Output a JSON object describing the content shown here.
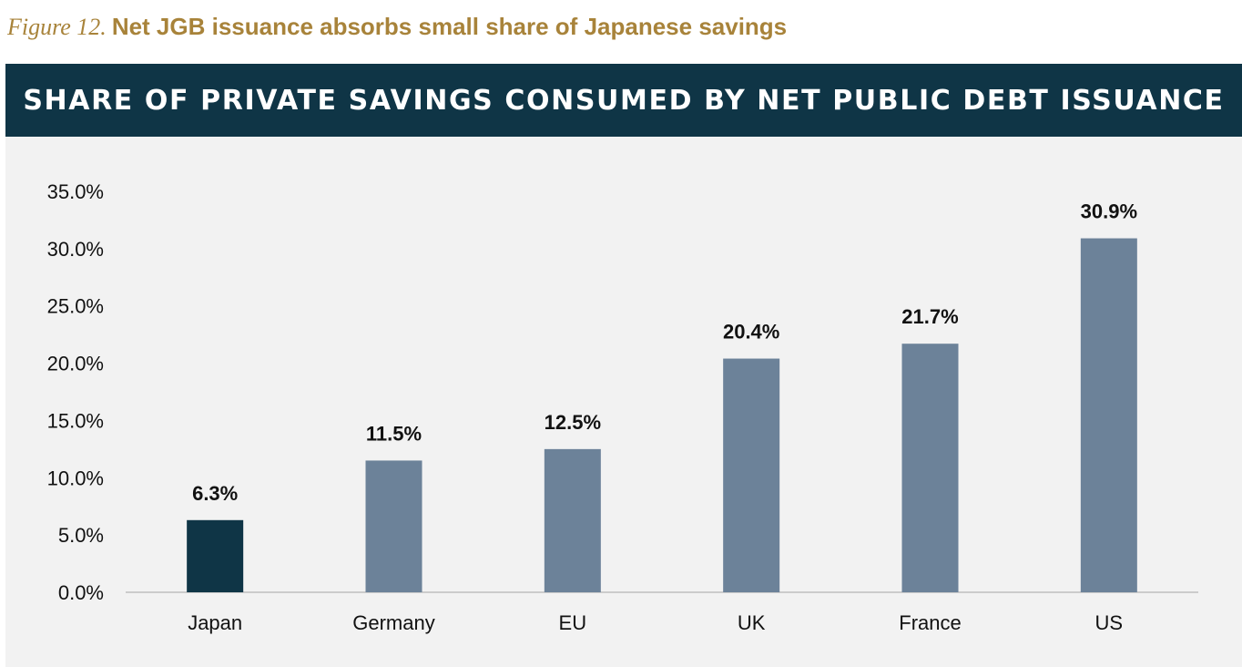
{
  "figure": {
    "number": "Figure 12.",
    "caption": "Net JGB issuance absorbs small share of Japanese savings"
  },
  "colors": {
    "caption": "#a8833a",
    "banner": "#0f3546",
    "highlight_bar": "#0f3546",
    "bar": "#6c8299",
    "plot_bg": "#f2f2f2",
    "axis": "#bfbfbf"
  },
  "chart_data": {
    "type": "bar",
    "title": "SHARE OF PRIVATE SAVINGS CONSUMED BY NET PUBLIC DEBT ISSUANCE",
    "categories": [
      "Japan",
      "Germany",
      "EU",
      "UK",
      "France",
      "US"
    ],
    "values": [
      6.3,
      11.5,
      12.5,
      20.4,
      21.7,
      30.9
    ],
    "data_labels": [
      "6.3%",
      "11.5%",
      "12.5%",
      "20.4%",
      "21.7%",
      "30.9%"
    ],
    "highlight_index": 0,
    "ylim": [
      0,
      35
    ],
    "yticks": [
      0,
      5,
      10,
      15,
      20,
      25,
      30,
      35
    ],
    "ytick_labels": [
      "0.0%",
      "5.0%",
      "10.0%",
      "15.0%",
      "20.0%",
      "25.0%",
      "30.0%",
      "35.0%"
    ],
    "xlabel": "",
    "ylabel": "",
    "grid": false,
    "legend": "none"
  }
}
